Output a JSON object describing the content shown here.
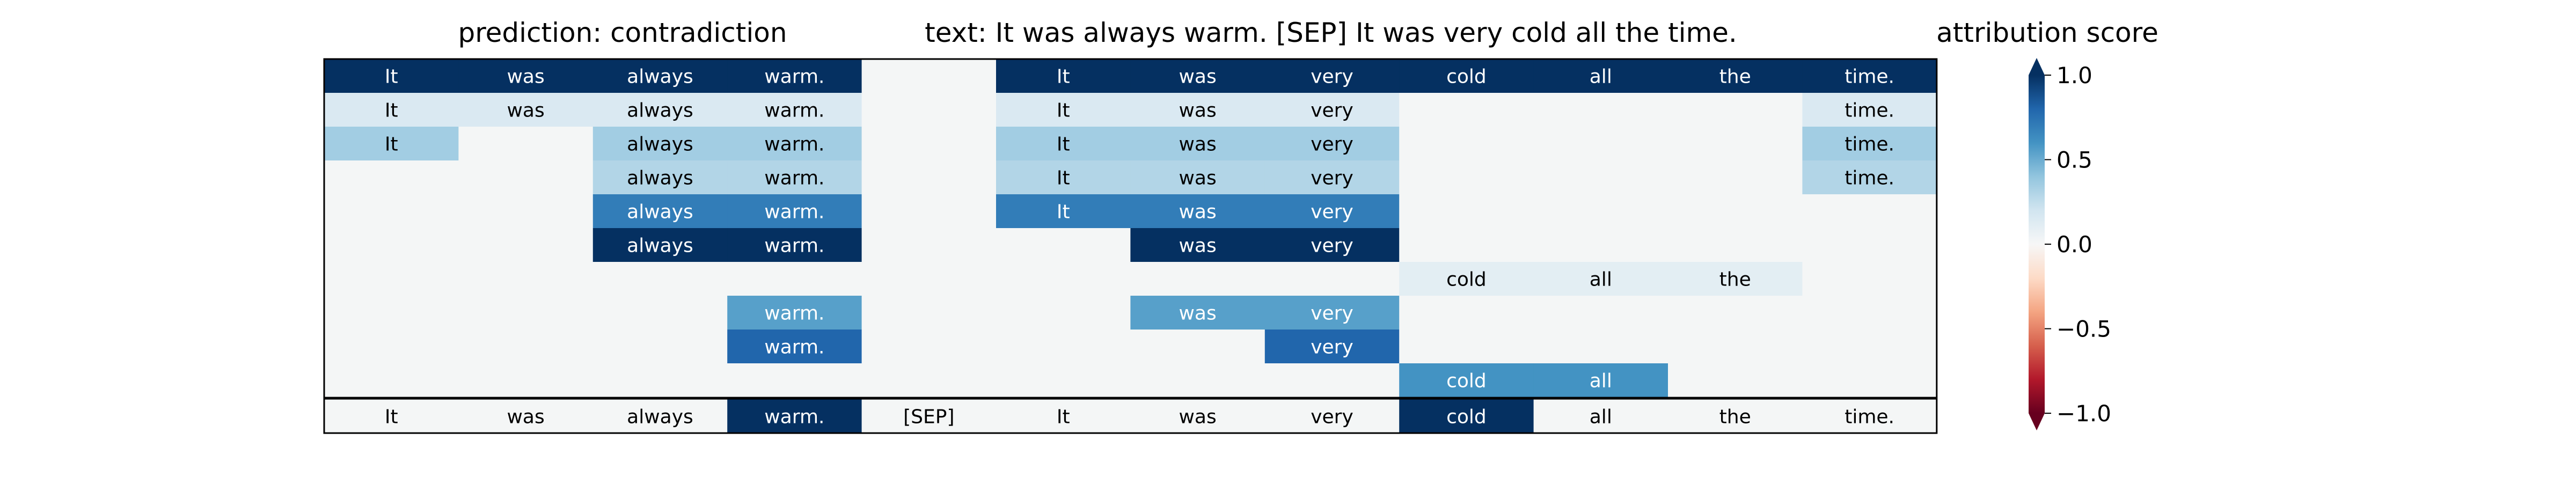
{
  "header": {
    "prediction": "prediction:  contradiction",
    "text": "text:  It was always warm. [SEP] It was very cold all the time.",
    "colorbar_title": "attribution score"
  },
  "chart_data": {
    "type": "heatmap",
    "tokens": [
      "It",
      "was",
      "always",
      "warm.",
      "[SEP]",
      "It",
      "was",
      "very",
      "cold",
      "all",
      "the",
      "time."
    ],
    "rows": [
      [
        1.0,
        1.0,
        1.0,
        1.0,
        0.0,
        1.0,
        1.0,
        1.0,
        1.0,
        1.0,
        1.0,
        1.0
      ],
      [
        0.15,
        0.15,
        0.15,
        0.15,
        0.0,
        0.15,
        0.15,
        0.15,
        0.0,
        0.0,
        0.0,
        0.15
      ],
      [
        0.35,
        0.0,
        0.35,
        0.35,
        0.0,
        0.35,
        0.35,
        0.35,
        0.0,
        0.0,
        0.0,
        0.35
      ],
      [
        0.0,
        0.0,
        0.3,
        0.3,
        0.0,
        0.3,
        0.3,
        0.3,
        0.0,
        0.0,
        0.0,
        0.3
      ],
      [
        0.0,
        0.0,
        0.7,
        0.7,
        0.0,
        0.7,
        0.7,
        0.7,
        0.0,
        0.0,
        0.0,
        0.0
      ],
      [
        0.0,
        0.0,
        1.0,
        1.0,
        0.0,
        0.0,
        1.0,
        1.0,
        0.0,
        0.0,
        0.0,
        0.0
      ],
      [
        0.0,
        0.0,
        0.0,
        0.0,
        0.0,
        0.0,
        0.0,
        0.0,
        0.1,
        0.1,
        0.1,
        0.0
      ],
      [
        0.0,
        0.0,
        0.0,
        0.55,
        0.0,
        0.0,
        0.55,
        0.55,
        0.0,
        0.0,
        0.0,
        0.0
      ],
      [
        0.0,
        0.0,
        0.0,
        0.8,
        0.0,
        0.0,
        0.0,
        0.8,
        0.0,
        0.0,
        0.0,
        0.0
      ],
      [
        0.0,
        0.0,
        0.0,
        0.0,
        0.0,
        0.0,
        0.0,
        0.0,
        0.6,
        0.6,
        0.0,
        0.0
      ]
    ],
    "bottom_row": [
      0.0,
      0.0,
      0.0,
      1.0,
      0.0,
      0.0,
      0.0,
      0.0,
      1.0,
      0.0,
      0.0,
      0.0
    ],
    "colorbar": {
      "title": "attribution score",
      "range": [
        -1.0,
        1.0
      ],
      "ticks": [
        1.0,
        0.5,
        0.0,
        -0.5,
        -1.0
      ],
      "tick_labels": [
        "1.0",
        "0.5",
        "0.0",
        "−0.5",
        "−1.0"
      ],
      "colormap": "RdBu"
    },
    "colors": {
      "neutral": "#f4f6f6",
      "text_dark": "#000000",
      "text_light": "#ffffff"
    }
  }
}
